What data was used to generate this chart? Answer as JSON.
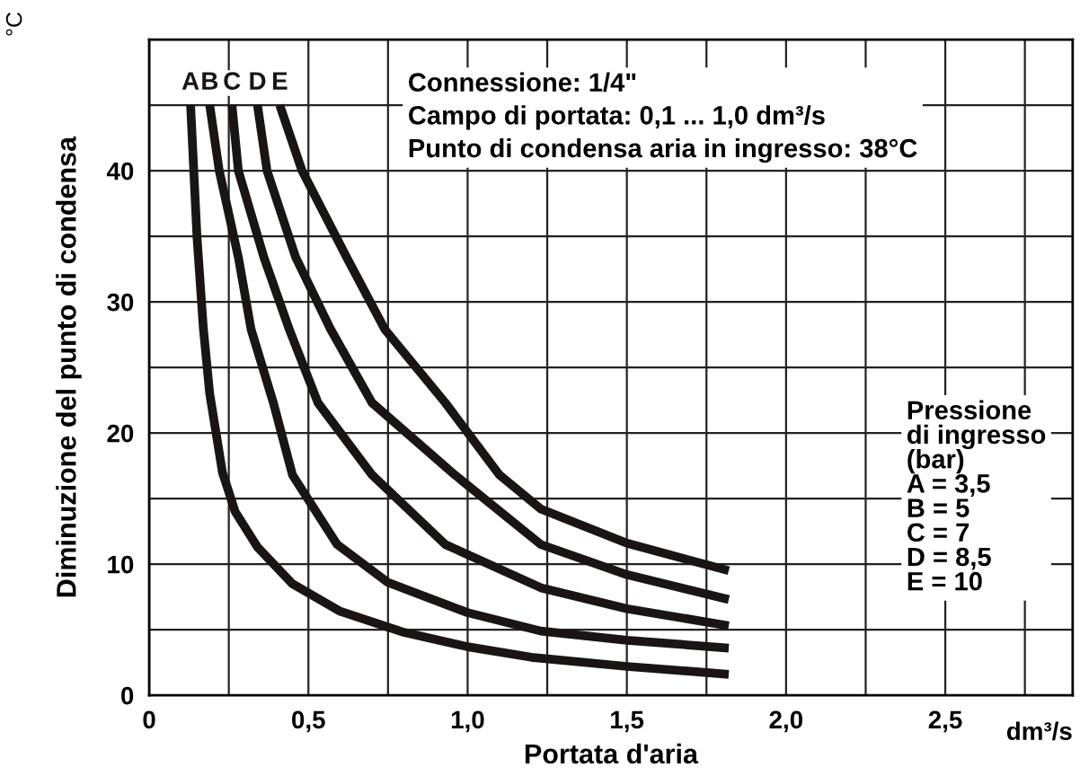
{
  "chart_data": {
    "type": "line",
    "xlabel": "Portata d'aria",
    "ylabel": "Diminuzione del punto di condensa",
    "annotations": [
      "°C",
      "dm³/s",
      "Connessione: 1/4\"\nCampo di portata: 0,1 ... 1,0 dm³/s\nPunto di condensa aria in ingresso: 38°C",
      "Pressione\ndi ingresso\n(bar)\nA = 3,5\nB = 5\nC = 7\nD = 8,5\nE = 10"
    ],
    "series": [
      {
        "name": "A",
        "color": "#1a1414",
        "x": [
          0.13,
          0.14,
          0.15,
          0.17,
          0.19,
          0.23,
          0.27,
          0.34,
          0.45,
          0.6,
          0.8,
          1.0,
          1.2,
          1.5,
          1.82
        ],
        "values": [
          45,
          40,
          35,
          28,
          23,
          17,
          14,
          11.3,
          8.5,
          6.4,
          4.8,
          3.7,
          2.9,
          2.2,
          1.6
        ]
      },
      {
        "name": "B",
        "color": "#1a1414",
        "x": [
          0.19,
          0.22,
          0.28,
          0.32,
          0.39,
          0.45,
          0.59,
          0.75,
          1.0,
          1.23,
          1.5,
          1.82
        ],
        "values": [
          45,
          40,
          33.4,
          27.9,
          22.3,
          16.8,
          11.5,
          8.6,
          6.3,
          4.9,
          4.2,
          3.6
        ]
      },
      {
        "name": "C",
        "color": "#1a1414",
        "x": [
          0.26,
          0.28,
          0.36,
          0.44,
          0.53,
          0.7,
          0.93,
          1.23,
          1.5,
          1.82
        ],
        "values": [
          45,
          40,
          33.4,
          27.9,
          22.3,
          16.8,
          11.5,
          8.2,
          6.6,
          5.3
        ]
      },
      {
        "name": "D",
        "color": "#1a1414",
        "x": [
          0.34,
          0.37,
          0.46,
          0.57,
          0.7,
          0.96,
          1.23,
          1.5,
          1.82
        ],
        "values": [
          45,
          40,
          33.4,
          27.9,
          22.3,
          16.8,
          11.5,
          9.2,
          7.3
        ]
      },
      {
        "name": "E",
        "color": "#1a1414",
        "x": [
          0.41,
          0.48,
          0.62,
          0.74,
          0.93,
          1.1,
          1.23,
          1.5,
          1.82
        ],
        "values": [
          45,
          40,
          33.4,
          27.9,
          22.3,
          16.8,
          14.2,
          11.6,
          9.5
        ]
      }
    ],
    "xlim": [
      0,
      2.9
    ],
    "ylim": [
      0,
      50
    ],
    "xticks": [
      {
        "value": 0,
        "label": "0"
      },
      {
        "value": 0.25,
        "label": null
      },
      {
        "value": 0.5,
        "label": "0,5"
      },
      {
        "value": 0.75,
        "label": null
      },
      {
        "value": 1.0,
        "label": "1,0"
      },
      {
        "value": 1.25,
        "label": null
      },
      {
        "value": 1.5,
        "label": "1,5"
      },
      {
        "value": 1.75,
        "label": null
      },
      {
        "value": 2.0,
        "label": "2,0"
      },
      {
        "value": 2.25,
        "label": null
      },
      {
        "value": 2.5,
        "label": "2,5"
      },
      {
        "value": 2.75,
        "label": null
      }
    ],
    "yticks": [
      0,
      {
        "value": 5,
        "label": null
      },
      10,
      {
        "value": 15,
        "label": null
      },
      20,
      {
        "value": 25,
        "label": null
      },
      30,
      {
        "value": 35,
        "label": null
      },
      40,
      {
        "value": 45,
        "label": null
      }
    ],
    "grid": true,
    "legend": false,
    "marker": "none",
    "line_style": "solid"
  }
}
